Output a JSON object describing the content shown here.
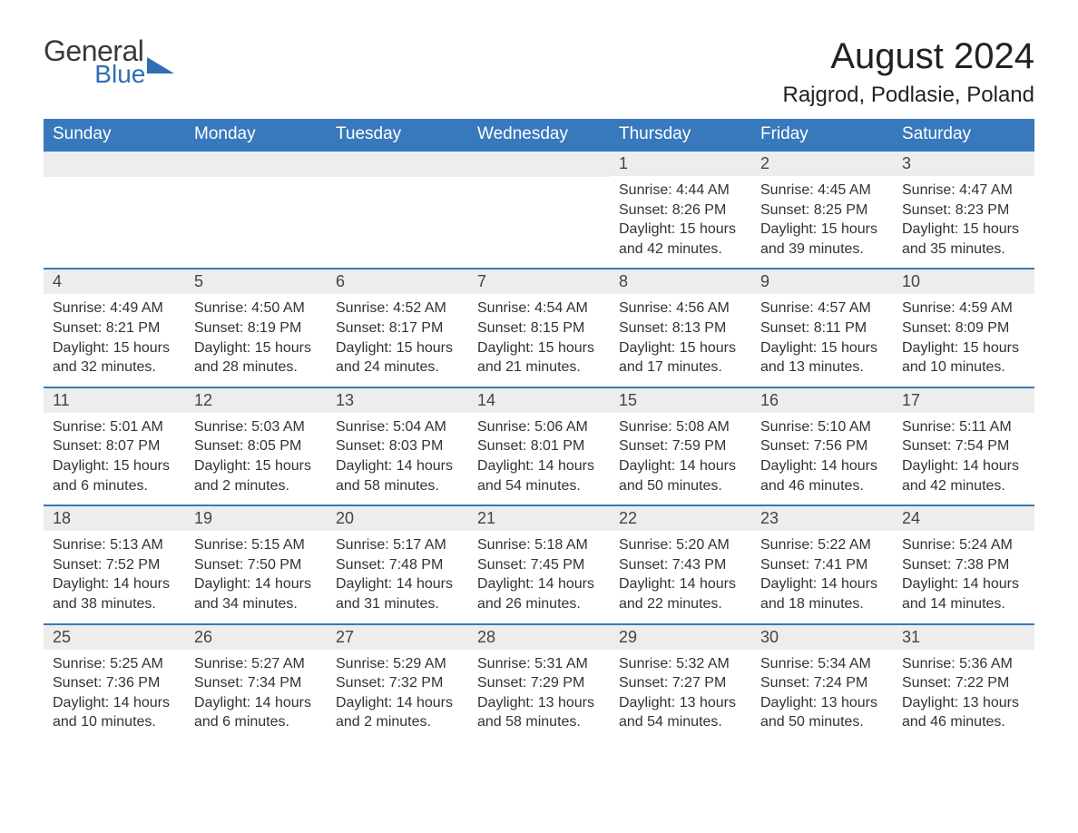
{
  "brand": {
    "word1": "General",
    "word2": "Blue",
    "text_color": "#3a3a3a",
    "accent_color": "#2f6eb5"
  },
  "title": {
    "month_year": "August 2024",
    "location": "Rajgrod, Podlasie, Poland",
    "title_fontsize": 40,
    "location_fontsize": 24
  },
  "colors": {
    "header_bg": "#3878bd",
    "header_text": "#ffffff",
    "daynum_bg": "#ededed",
    "row_divider": "#3878bd",
    "body_text": "#333333",
    "page_bg": "#ffffff"
  },
  "day_headers": [
    "Sunday",
    "Monday",
    "Tuesday",
    "Wednesday",
    "Thursday",
    "Friday",
    "Saturday"
  ],
  "weeks": [
    [
      null,
      null,
      null,
      null,
      {
        "n": "1",
        "sunrise": "Sunrise: 4:44 AM",
        "sunset": "Sunset: 8:26 PM",
        "daylight": "Daylight: 15 hours and 42 minutes."
      },
      {
        "n": "2",
        "sunrise": "Sunrise: 4:45 AM",
        "sunset": "Sunset: 8:25 PM",
        "daylight": "Daylight: 15 hours and 39 minutes."
      },
      {
        "n": "3",
        "sunrise": "Sunrise: 4:47 AM",
        "sunset": "Sunset: 8:23 PM",
        "daylight": "Daylight: 15 hours and 35 minutes."
      }
    ],
    [
      {
        "n": "4",
        "sunrise": "Sunrise: 4:49 AM",
        "sunset": "Sunset: 8:21 PM",
        "daylight": "Daylight: 15 hours and 32 minutes."
      },
      {
        "n": "5",
        "sunrise": "Sunrise: 4:50 AM",
        "sunset": "Sunset: 8:19 PM",
        "daylight": "Daylight: 15 hours and 28 minutes."
      },
      {
        "n": "6",
        "sunrise": "Sunrise: 4:52 AM",
        "sunset": "Sunset: 8:17 PM",
        "daylight": "Daylight: 15 hours and 24 minutes."
      },
      {
        "n": "7",
        "sunrise": "Sunrise: 4:54 AM",
        "sunset": "Sunset: 8:15 PM",
        "daylight": "Daylight: 15 hours and 21 minutes."
      },
      {
        "n": "8",
        "sunrise": "Sunrise: 4:56 AM",
        "sunset": "Sunset: 8:13 PM",
        "daylight": "Daylight: 15 hours and 17 minutes."
      },
      {
        "n": "9",
        "sunrise": "Sunrise: 4:57 AM",
        "sunset": "Sunset: 8:11 PM",
        "daylight": "Daylight: 15 hours and 13 minutes."
      },
      {
        "n": "10",
        "sunrise": "Sunrise: 4:59 AM",
        "sunset": "Sunset: 8:09 PM",
        "daylight": "Daylight: 15 hours and 10 minutes."
      }
    ],
    [
      {
        "n": "11",
        "sunrise": "Sunrise: 5:01 AM",
        "sunset": "Sunset: 8:07 PM",
        "daylight": "Daylight: 15 hours and 6 minutes."
      },
      {
        "n": "12",
        "sunrise": "Sunrise: 5:03 AM",
        "sunset": "Sunset: 8:05 PM",
        "daylight": "Daylight: 15 hours and 2 minutes."
      },
      {
        "n": "13",
        "sunrise": "Sunrise: 5:04 AM",
        "sunset": "Sunset: 8:03 PM",
        "daylight": "Daylight: 14 hours and 58 minutes."
      },
      {
        "n": "14",
        "sunrise": "Sunrise: 5:06 AM",
        "sunset": "Sunset: 8:01 PM",
        "daylight": "Daylight: 14 hours and 54 minutes."
      },
      {
        "n": "15",
        "sunrise": "Sunrise: 5:08 AM",
        "sunset": "Sunset: 7:59 PM",
        "daylight": "Daylight: 14 hours and 50 minutes."
      },
      {
        "n": "16",
        "sunrise": "Sunrise: 5:10 AM",
        "sunset": "Sunset: 7:56 PM",
        "daylight": "Daylight: 14 hours and 46 minutes."
      },
      {
        "n": "17",
        "sunrise": "Sunrise: 5:11 AM",
        "sunset": "Sunset: 7:54 PM",
        "daylight": "Daylight: 14 hours and 42 minutes."
      }
    ],
    [
      {
        "n": "18",
        "sunrise": "Sunrise: 5:13 AM",
        "sunset": "Sunset: 7:52 PM",
        "daylight": "Daylight: 14 hours and 38 minutes."
      },
      {
        "n": "19",
        "sunrise": "Sunrise: 5:15 AM",
        "sunset": "Sunset: 7:50 PM",
        "daylight": "Daylight: 14 hours and 34 minutes."
      },
      {
        "n": "20",
        "sunrise": "Sunrise: 5:17 AM",
        "sunset": "Sunset: 7:48 PM",
        "daylight": "Daylight: 14 hours and 31 minutes."
      },
      {
        "n": "21",
        "sunrise": "Sunrise: 5:18 AM",
        "sunset": "Sunset: 7:45 PM",
        "daylight": "Daylight: 14 hours and 26 minutes."
      },
      {
        "n": "22",
        "sunrise": "Sunrise: 5:20 AM",
        "sunset": "Sunset: 7:43 PM",
        "daylight": "Daylight: 14 hours and 22 minutes."
      },
      {
        "n": "23",
        "sunrise": "Sunrise: 5:22 AM",
        "sunset": "Sunset: 7:41 PM",
        "daylight": "Daylight: 14 hours and 18 minutes."
      },
      {
        "n": "24",
        "sunrise": "Sunrise: 5:24 AM",
        "sunset": "Sunset: 7:38 PM",
        "daylight": "Daylight: 14 hours and 14 minutes."
      }
    ],
    [
      {
        "n": "25",
        "sunrise": "Sunrise: 5:25 AM",
        "sunset": "Sunset: 7:36 PM",
        "daylight": "Daylight: 14 hours and 10 minutes."
      },
      {
        "n": "26",
        "sunrise": "Sunrise: 5:27 AM",
        "sunset": "Sunset: 7:34 PM",
        "daylight": "Daylight: 14 hours and 6 minutes."
      },
      {
        "n": "27",
        "sunrise": "Sunrise: 5:29 AM",
        "sunset": "Sunset: 7:32 PM",
        "daylight": "Daylight: 14 hours and 2 minutes."
      },
      {
        "n": "28",
        "sunrise": "Sunrise: 5:31 AM",
        "sunset": "Sunset: 7:29 PM",
        "daylight": "Daylight: 13 hours and 58 minutes."
      },
      {
        "n": "29",
        "sunrise": "Sunrise: 5:32 AM",
        "sunset": "Sunset: 7:27 PM",
        "daylight": "Daylight: 13 hours and 54 minutes."
      },
      {
        "n": "30",
        "sunrise": "Sunrise: 5:34 AM",
        "sunset": "Sunset: 7:24 PM",
        "daylight": "Daylight: 13 hours and 50 minutes."
      },
      {
        "n": "31",
        "sunrise": "Sunrise: 5:36 AM",
        "sunset": "Sunset: 7:22 PM",
        "daylight": "Daylight: 13 hours and 46 minutes."
      }
    ]
  ]
}
